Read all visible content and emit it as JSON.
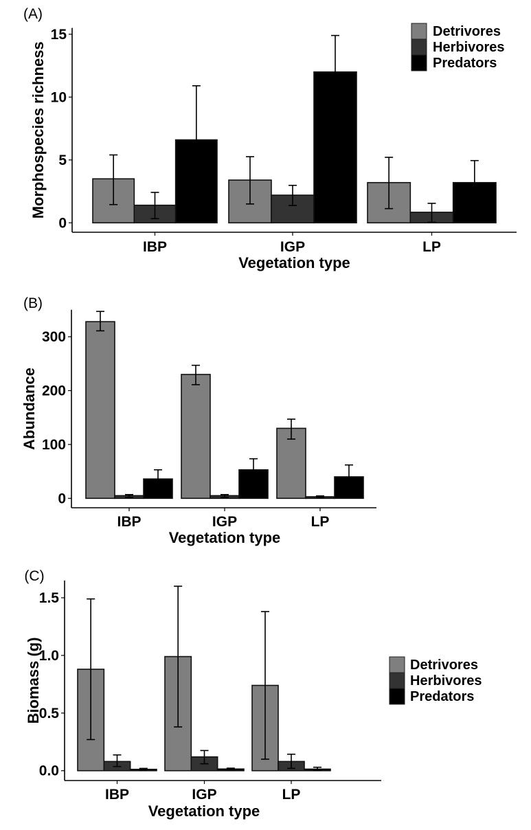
{
  "colors": {
    "Detrivores": "#7f7f7f",
    "Herbivores": "#333333",
    "Predators": "#000000"
  },
  "chart_data": [
    {
      "type": "bar",
      "panel_label": "(A)",
      "title": "",
      "xlabel": "Vegetation type",
      "ylabel": "Morphospecies richness",
      "categories": [
        "IBP",
        "IGP",
        "LP"
      ],
      "ylim": [
        0,
        15.5
      ],
      "yticks": [
        0,
        5,
        10,
        15
      ],
      "ytick_labels": [
        "0",
        "5",
        "10",
        "15"
      ],
      "legend": {
        "entries": [
          "Detrivores",
          "Herbivores",
          "Predators"
        ],
        "placement": "top-right"
      },
      "grid": false,
      "series": [
        {
          "name": "Detrivores",
          "values": [
            3.5,
            3.4,
            3.2
          ],
          "err_low": [
            1.45,
            1.5,
            1.13
          ],
          "err_high": [
            5.4,
            5.26,
            5.21
          ]
        },
        {
          "name": "Herbivores",
          "values": [
            1.4,
            2.2,
            0.84
          ],
          "err_low": [
            0.33,
            1.38,
            0.05
          ],
          "err_high": [
            2.42,
            2.98,
            1.55
          ]
        },
        {
          "name": "Predators",
          "values": [
            6.6,
            12.0,
            3.2
          ],
          "err_low": [
            2.2,
            9.1,
            1.42
          ],
          "err_high": [
            10.9,
            14.9,
            4.95
          ]
        }
      ]
    },
    {
      "type": "bar",
      "panel_label": "(B)",
      "title": "",
      "xlabel": "Vegetation type",
      "ylabel": "Abundance",
      "categories": [
        "IBP",
        "IGP",
        "LP"
      ],
      "ylim": [
        0,
        350
      ],
      "yticks": [
        0,
        100,
        200,
        300
      ],
      "ytick_labels": [
        "0",
        "100",
        "200",
        "300"
      ],
      "legend": null,
      "grid": false,
      "series": [
        {
          "name": "Detrivores",
          "values": [
            328,
            230,
            130
          ],
          "err_low": [
            311,
            211,
            110
          ],
          "err_high": [
            347,
            247,
            147
          ]
        },
        {
          "name": "Herbivores",
          "values": [
            5,
            5,
            3
          ],
          "err_low": [
            2,
            2,
            1.5
          ],
          "err_high": [
            7,
            7,
            4.5
          ]
        },
        {
          "name": "Predators",
          "values": [
            36,
            53,
            40
          ],
          "err_low": [
            16,
            29,
            15
          ],
          "err_high": [
            53,
            73.5,
            62
          ]
        }
      ]
    },
    {
      "type": "bar",
      "panel_label": "(C)",
      "title": "",
      "xlabel": "Vegetation type",
      "ylabel": "Biomass (g)",
      "categories": [
        "IBP",
        "IGP",
        "LP"
      ],
      "ylim": [
        0,
        1.65
      ],
      "yticks": [
        0,
        0.5,
        1.0,
        1.5
      ],
      "ytick_labels": [
        "0.0",
        "0.5",
        "1.0",
        "1.5"
      ],
      "legend": {
        "entries": [
          "Detrivores",
          "Herbivores",
          "Predators"
        ],
        "placement": "right"
      },
      "grid": false,
      "series": [
        {
          "name": "Detrivores",
          "values": [
            0.88,
            0.99,
            0.74
          ],
          "err_low": [
            0.27,
            0.38,
            0.1
          ],
          "err_high": [
            1.49,
            1.6,
            1.38
          ]
        },
        {
          "name": "Herbivores",
          "values": [
            0.08,
            0.12,
            0.08
          ],
          "err_low": [
            0.036,
            0.06,
            0.02
          ],
          "err_high": [
            0.137,
            0.175,
            0.143
          ]
        },
        {
          "name": "Predators",
          "values": [
            0.012,
            0.015,
            0.014
          ],
          "err_low": [
            0.006,
            0.008,
            0.002
          ],
          "err_high": [
            0.02,
            0.022,
            0.03
          ]
        }
      ]
    }
  ]
}
